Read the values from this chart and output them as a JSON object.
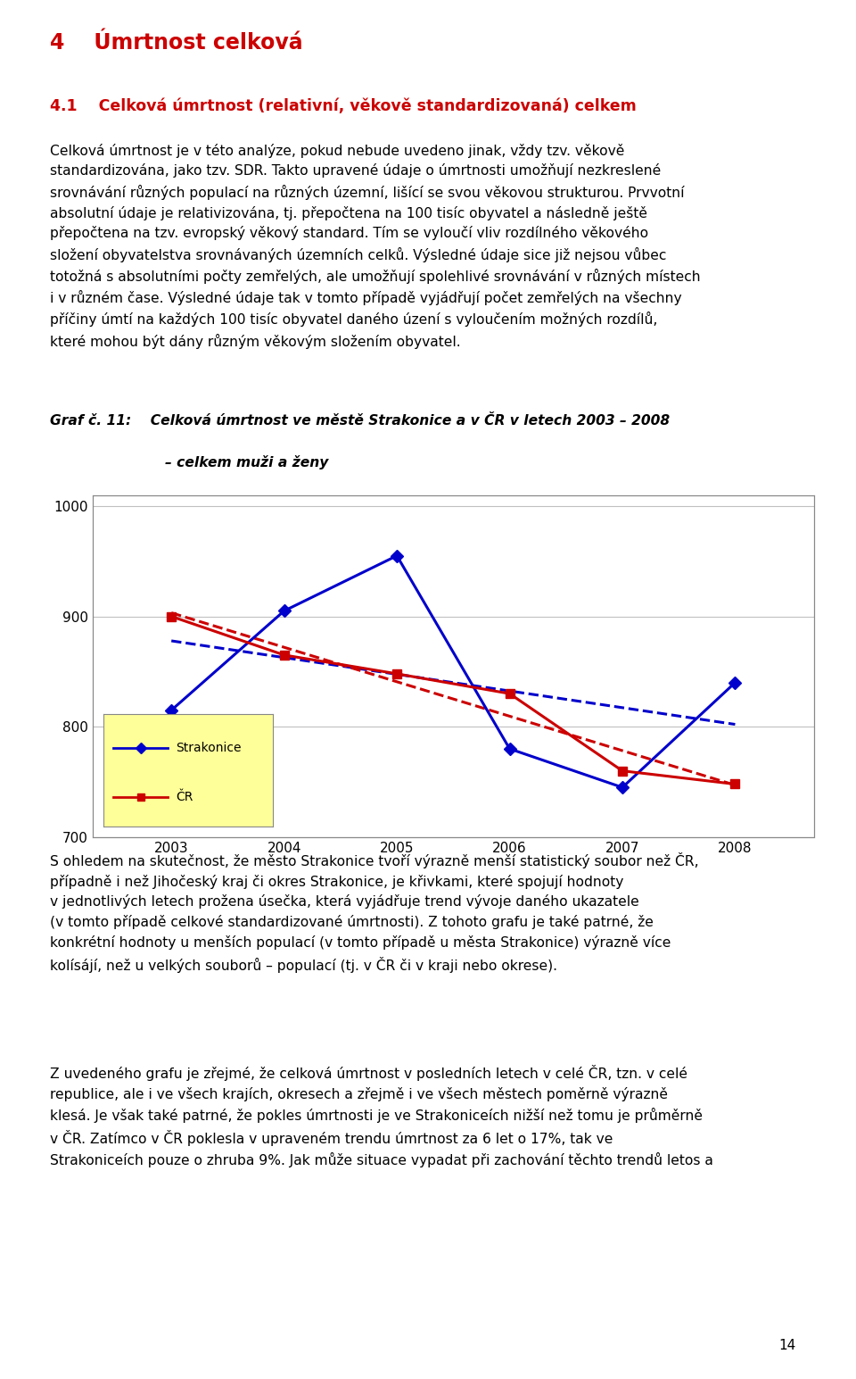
{
  "page_title": "4    Úmrtnost celková",
  "section_title": "4.1    Celková úmrtnost (relativní, věkově standardizovaná) celkem",
  "para1_line1": "Celková úmrtnost je v této analýze, pokud nebude uvedeno jinak, vždy tzv. věkově",
  "para1_line2": "standardizována, jako tzv. SDR. Takto upravené údaje o úmrtnosti umožňují nezkreslené",
  "para1_line3": "srovnávání různých populací na různých územní, lišící se svou věkovou strukturou. Prvvotní",
  "para1_line4": "absolutní údaje je relativizována, tj. přepočtena na 100 tisíc obyvatel a následně ještě",
  "para1_line5": "přepočtena na tzv. evropský věkový standard. Tím se vyloučí vliv rozdílného věkového",
  "para1_line6": "složení obyvatelstva srovnávaných územních celků. Výsledné údaje sice již nejsou vůbec",
  "para1_line7": "totožná s absolutními počty zemřelých, ale umožňují spolehlivé srovnávání v různých místech",
  "para1_line8": "i v různém čase. Výsledné údaje tak v tomto případě vyjádřují počet zemřelých na všechny",
  "para1_line9": "příčiny úmtí na každých 100 tisíc obyvatel daného úzení s vyloučením možných rozdílů,",
  "para1_line10": "které mohou být dány různým věkovým složením obyvatel.",
  "graph_label": "Graf č. 11:",
  "graph_title_line1": "Celková úmrtnost ve městě Strakonice a v ČR v letech 2003 – 2008",
  "graph_title_line2": "– celkem muži a ženy",
  "para2_line1": "S ohledem na skutečnost, že město Strakonice tvoří výrazně menší statistický soubor než ČR,",
  "para2_line2": "případně i než Jihočeský kraj či okres Strakonice, je křivkami, které spojují hodnoty",
  "para2_line3": "v jednotlivých letech prožena úsečka, která vyjádřuje trend vývoje daného ukazatele",
  "para2_line4": "(v tomto případě celkové standardizované úmrtnosti). Z tohoto grafu je také patrné, že",
  "para2_line5": "konkrétní hodnoty u menších populací (v tomto případě u města Strakonice) výrazně více",
  "para2_line6": "kolísájí, než u velkých souborů – populací (tj. v ČR či v kraji nebo okrese).",
  "para3_line1": "Z uvedeného grafu je zřejmé, že celková úmrtnost v posledních letech v celé ČR, tzn. v celé",
  "para3_line2": "republice, ale i ve všech krajích, okresech a zřejmě i ve všech městech poměrně výrazně",
  "para3_line3": "klesá. Je však také patrné, že pokles úmrtnosti je ve Strakoniceích nižší než tomu je průměrně",
  "para3_line4": "v ČR. Zatímco v ČR poklesla v upraveném trendu úmrtnost za 6 let o 17%, tak ve",
  "para3_line5": "Strakoniceích pouze o zhruba 9%. Jak může situace vypadat při zachování těchto trendů letos a",
  "page_number": "14",
  "years": [
    2003,
    2004,
    2005,
    2006,
    2007,
    2008
  ],
  "strakonice_values": [
    815,
    905,
    955,
    780,
    745,
    840
  ],
  "cr_values": [
    900,
    865,
    848,
    830,
    760,
    748
  ],
  "ylim": [
    700,
    1010
  ],
  "yticks": [
    700,
    800,
    900,
    1000
  ],
  "strakonice_color": "#0000CC",
  "cr_color": "#CC0000",
  "legend_bg": "#FFFF99",
  "bg_color": "#FFFFFF",
  "chart_bg": "#FFFFFF",
  "grid_color": "#C0C0C0"
}
